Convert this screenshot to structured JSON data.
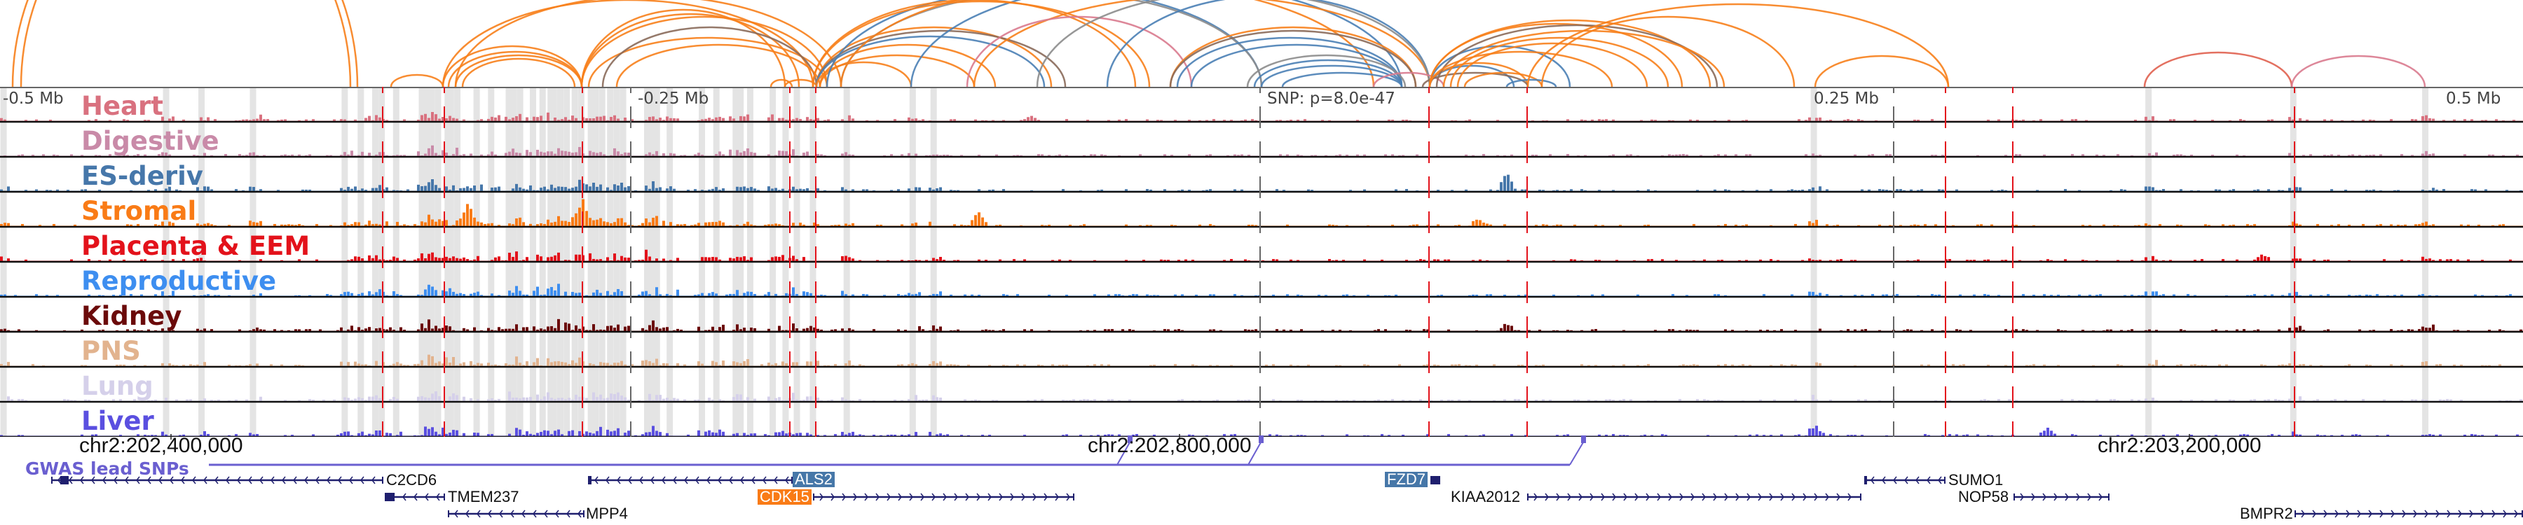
{
  "axis": {
    "left_label": "-0.5 Mb",
    "mid_left_label": "-0.25 Mb",
    "snp_label": "SNP: p=8.0e-47",
    "mid_right_label": "0.25 Mb",
    "right_label": "0.5 Mb"
  },
  "tracks": [
    {
      "name": "Heart",
      "color": "#d9717f"
    },
    {
      "name": "Digestive",
      "color": "#c98aa8"
    },
    {
      "name": "ES-deriv",
      "color": "#4677aa"
    },
    {
      "name": "Stromal",
      "color": "#f97b16"
    },
    {
      "name": "Placenta & EEM",
      "color": "#e3121b"
    },
    {
      "name": "Reproductive",
      "color": "#3d8ef0"
    },
    {
      "name": "Kidney",
      "color": "#6b0a0a"
    },
    {
      "name": "PNS",
      "color": "#e2b38e"
    },
    {
      "name": "Lung",
      "color": "#d5d0ea"
    },
    {
      "name": "Liver",
      "color": "#5a4fe0"
    }
  ],
  "coordinates": [
    "chr2:202,400,000",
    "chr2:202,800,000",
    "chr2:203,200,000"
  ],
  "gwas": {
    "label": "GWAS lead SNPs",
    "color": "#6a5fd0"
  },
  "genes": {
    "C2CD6": "C2CD6",
    "TMEM237": "TMEM237",
    "MPP4": "MPP4",
    "ALS2": "ALS2",
    "CDK15": "CDK15",
    "FZD7": "FZD7",
    "KIAA2012": "KIAA2012",
    "SUMO1": "SUMO1",
    "NOP58": "NOP58",
    "BMPR2": "BMPR2"
  },
  "colors": {
    "highlight_blue": "#4677a8",
    "highlight_orange": "#f97b16",
    "gene_line": "#1f1f6e",
    "lead_snp_line": "#e3121b"
  }
}
